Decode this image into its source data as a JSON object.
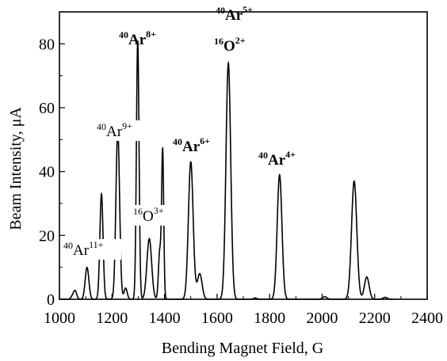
{
  "chart_data": {
    "type": "line",
    "xlabel": "Bending Magnet Field, G",
    "ylabel": "Beam Intensity, μA",
    "xlim": [
      1000,
      2400
    ],
    "ylim": [
      0,
      90
    ],
    "xticks": [
      1000,
      1200,
      1400,
      1600,
      1800,
      2000,
      2200,
      2400
    ],
    "yticks": [
      0,
      20,
      40,
      60,
      80
    ],
    "grid": false,
    "series": [
      {
        "peaks": [
          {
            "center": 1050,
            "height": 1,
            "width": 6
          },
          {
            "center": 1060,
            "height": 2.5,
            "width": 6
          },
          {
            "center": 1105,
            "height": 10,
            "width": 7
          },
          {
            "center": 1160,
            "height": 33,
            "width": 6
          },
          {
            "center": 1222,
            "height": 53,
            "width": 7
          },
          {
            "center": 1252,
            "height": 3.5,
            "width": 6
          },
          {
            "center": 1298,
            "height": 81,
            "width": 5
          },
          {
            "center": 1342,
            "height": 19,
            "width": 9
          },
          {
            "center": 1382,
            "height": 15,
            "width": 5
          },
          {
            "center": 1393,
            "height": 46,
            "width": 4
          },
          {
            "center": 1500,
            "height": 43,
            "width": 9
          },
          {
            "center": 1534,
            "height": 8,
            "width": 9
          },
          {
            "center": 1643,
            "height": 74,
            "width": 9
          },
          {
            "center": 1745,
            "height": 0.4,
            "width": 6
          },
          {
            "center": 1838,
            "height": 39,
            "width": 9
          },
          {
            "center": 2010,
            "height": 0.8,
            "width": 8
          },
          {
            "center": 2122,
            "height": 37,
            "width": 10
          },
          {
            "center": 2170,
            "height": 7,
            "width": 9
          },
          {
            "center": 2240,
            "height": 0.6,
            "width": 8
          }
        ]
      }
    ],
    "annotations": [
      {
        "id": "ar11",
        "mass": "40",
        "element": "Ar",
        "charge": "11+",
        "bold": false
      },
      {
        "id": "ar9",
        "mass": "40",
        "element": "Ar",
        "charge": "9+",
        "bold": false
      },
      {
        "id": "ar8",
        "mass": "40",
        "element": "Ar",
        "charge": "8+",
        "bold": true
      },
      {
        "id": "o3",
        "mass": "16",
        "element": "O",
        "charge": "3+",
        "bold": false
      },
      {
        "id": "ar6",
        "mass": "40",
        "element": "Ar",
        "charge": "6+",
        "bold": true
      },
      {
        "id": "ar5",
        "mass": "40",
        "element": "Ar",
        "charge": "5+",
        "bold": true
      },
      {
        "id": "o2",
        "mass": "16",
        "element": "O",
        "charge": "2+",
        "bold": true
      },
      {
        "id": "ar4",
        "mass": "40",
        "element": "Ar",
        "charge": "4+",
        "bold": true
      }
    ]
  }
}
